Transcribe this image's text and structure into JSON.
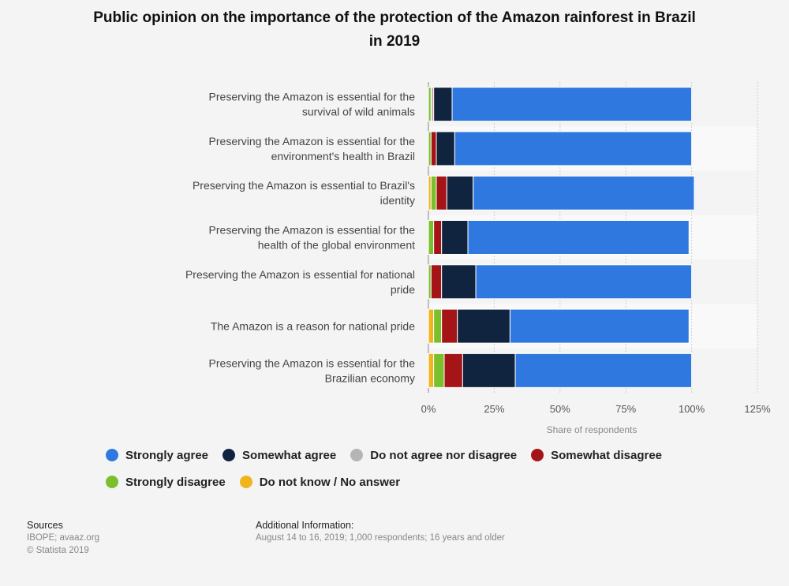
{
  "header": {
    "title_line1": "Public opinion on the importance of the protection of the Amazon rainforest in Brazil",
    "title_line2": "in 2019"
  },
  "chart_data": {
    "type": "bar",
    "orientation": "horizontal",
    "stacked": true,
    "title": "Public opinion on the importance of the protection of the Amazon rainforest in Brazil in 2019",
    "xlabel": "Share of respondents",
    "ylabel": "",
    "xlim": [
      0,
      125
    ],
    "x_ticks": [
      "0%",
      "25%",
      "50%",
      "75%",
      "100%",
      "125%"
    ],
    "categories": [
      [
        "Preserving the Amazon is essential for the",
        "survival of wild animals"
      ],
      [
        "Preserving the Amazon is essential for the",
        "environment's health in Brazil"
      ],
      [
        "Preserving the Amazon is essential to Brazil's",
        "identity"
      ],
      [
        "Preserving the Amazon is essential for the",
        "health of the global environment"
      ],
      [
        "Preserving the Amazon is essential for national",
        "pride"
      ],
      [
        "The Amazon is a reason for national pride"
      ],
      [
        "Preserving the Amazon is essential for the",
        "Brazilian economy"
      ]
    ],
    "series": [
      {
        "name": "Do not know / No answer",
        "color": "#f0b41c",
        "values": [
          0,
          0,
          1,
          0,
          0,
          2,
          2
        ]
      },
      {
        "name": "Strongly disagree",
        "color": "#7cbf2c",
        "values": [
          1,
          1,
          2,
          2,
          1,
          3,
          4
        ]
      },
      {
        "name": "Do not agree nor disagree",
        "color": "#b5b5b5",
        "values": [
          0.5,
          0,
          0,
          0,
          0,
          0,
          0
        ]
      },
      {
        "name": "Somewhat disagree",
        "color": "#a51417",
        "values": [
          0.5,
          2,
          4,
          3,
          4,
          6,
          7
        ]
      },
      {
        "name": "Somewhat agree",
        "color": "#11243f",
        "values": [
          7,
          7,
          10,
          10,
          13,
          20,
          20
        ]
      },
      {
        "name": "Strongly agree",
        "color": "#2f78e0",
        "values": [
          91,
          90,
          84,
          84,
          82,
          68,
          67
        ]
      }
    ]
  },
  "legend": {
    "items": [
      {
        "label": "Strongly agree",
        "color": "#2f78e0"
      },
      {
        "label": "Somewhat agree",
        "color": "#11243f"
      },
      {
        "label": "Do not agree nor disagree",
        "color": "#b5b5b5"
      },
      {
        "label": "Somewhat disagree",
        "color": "#a51417"
      },
      {
        "label": "Strongly disagree",
        "color": "#7cbf2c"
      },
      {
        "label": "Do not know / No answer",
        "color": "#f0b41c"
      }
    ]
  },
  "footer": {
    "sources_title": "Sources",
    "sources_line1": "IBOPE; avaaz.org",
    "sources_line2": "© Statista 2019",
    "additional_title": "Additional Information:",
    "additional_text": "August 14 to 16, 2019; 1,000 respondents; 16 years and older"
  }
}
